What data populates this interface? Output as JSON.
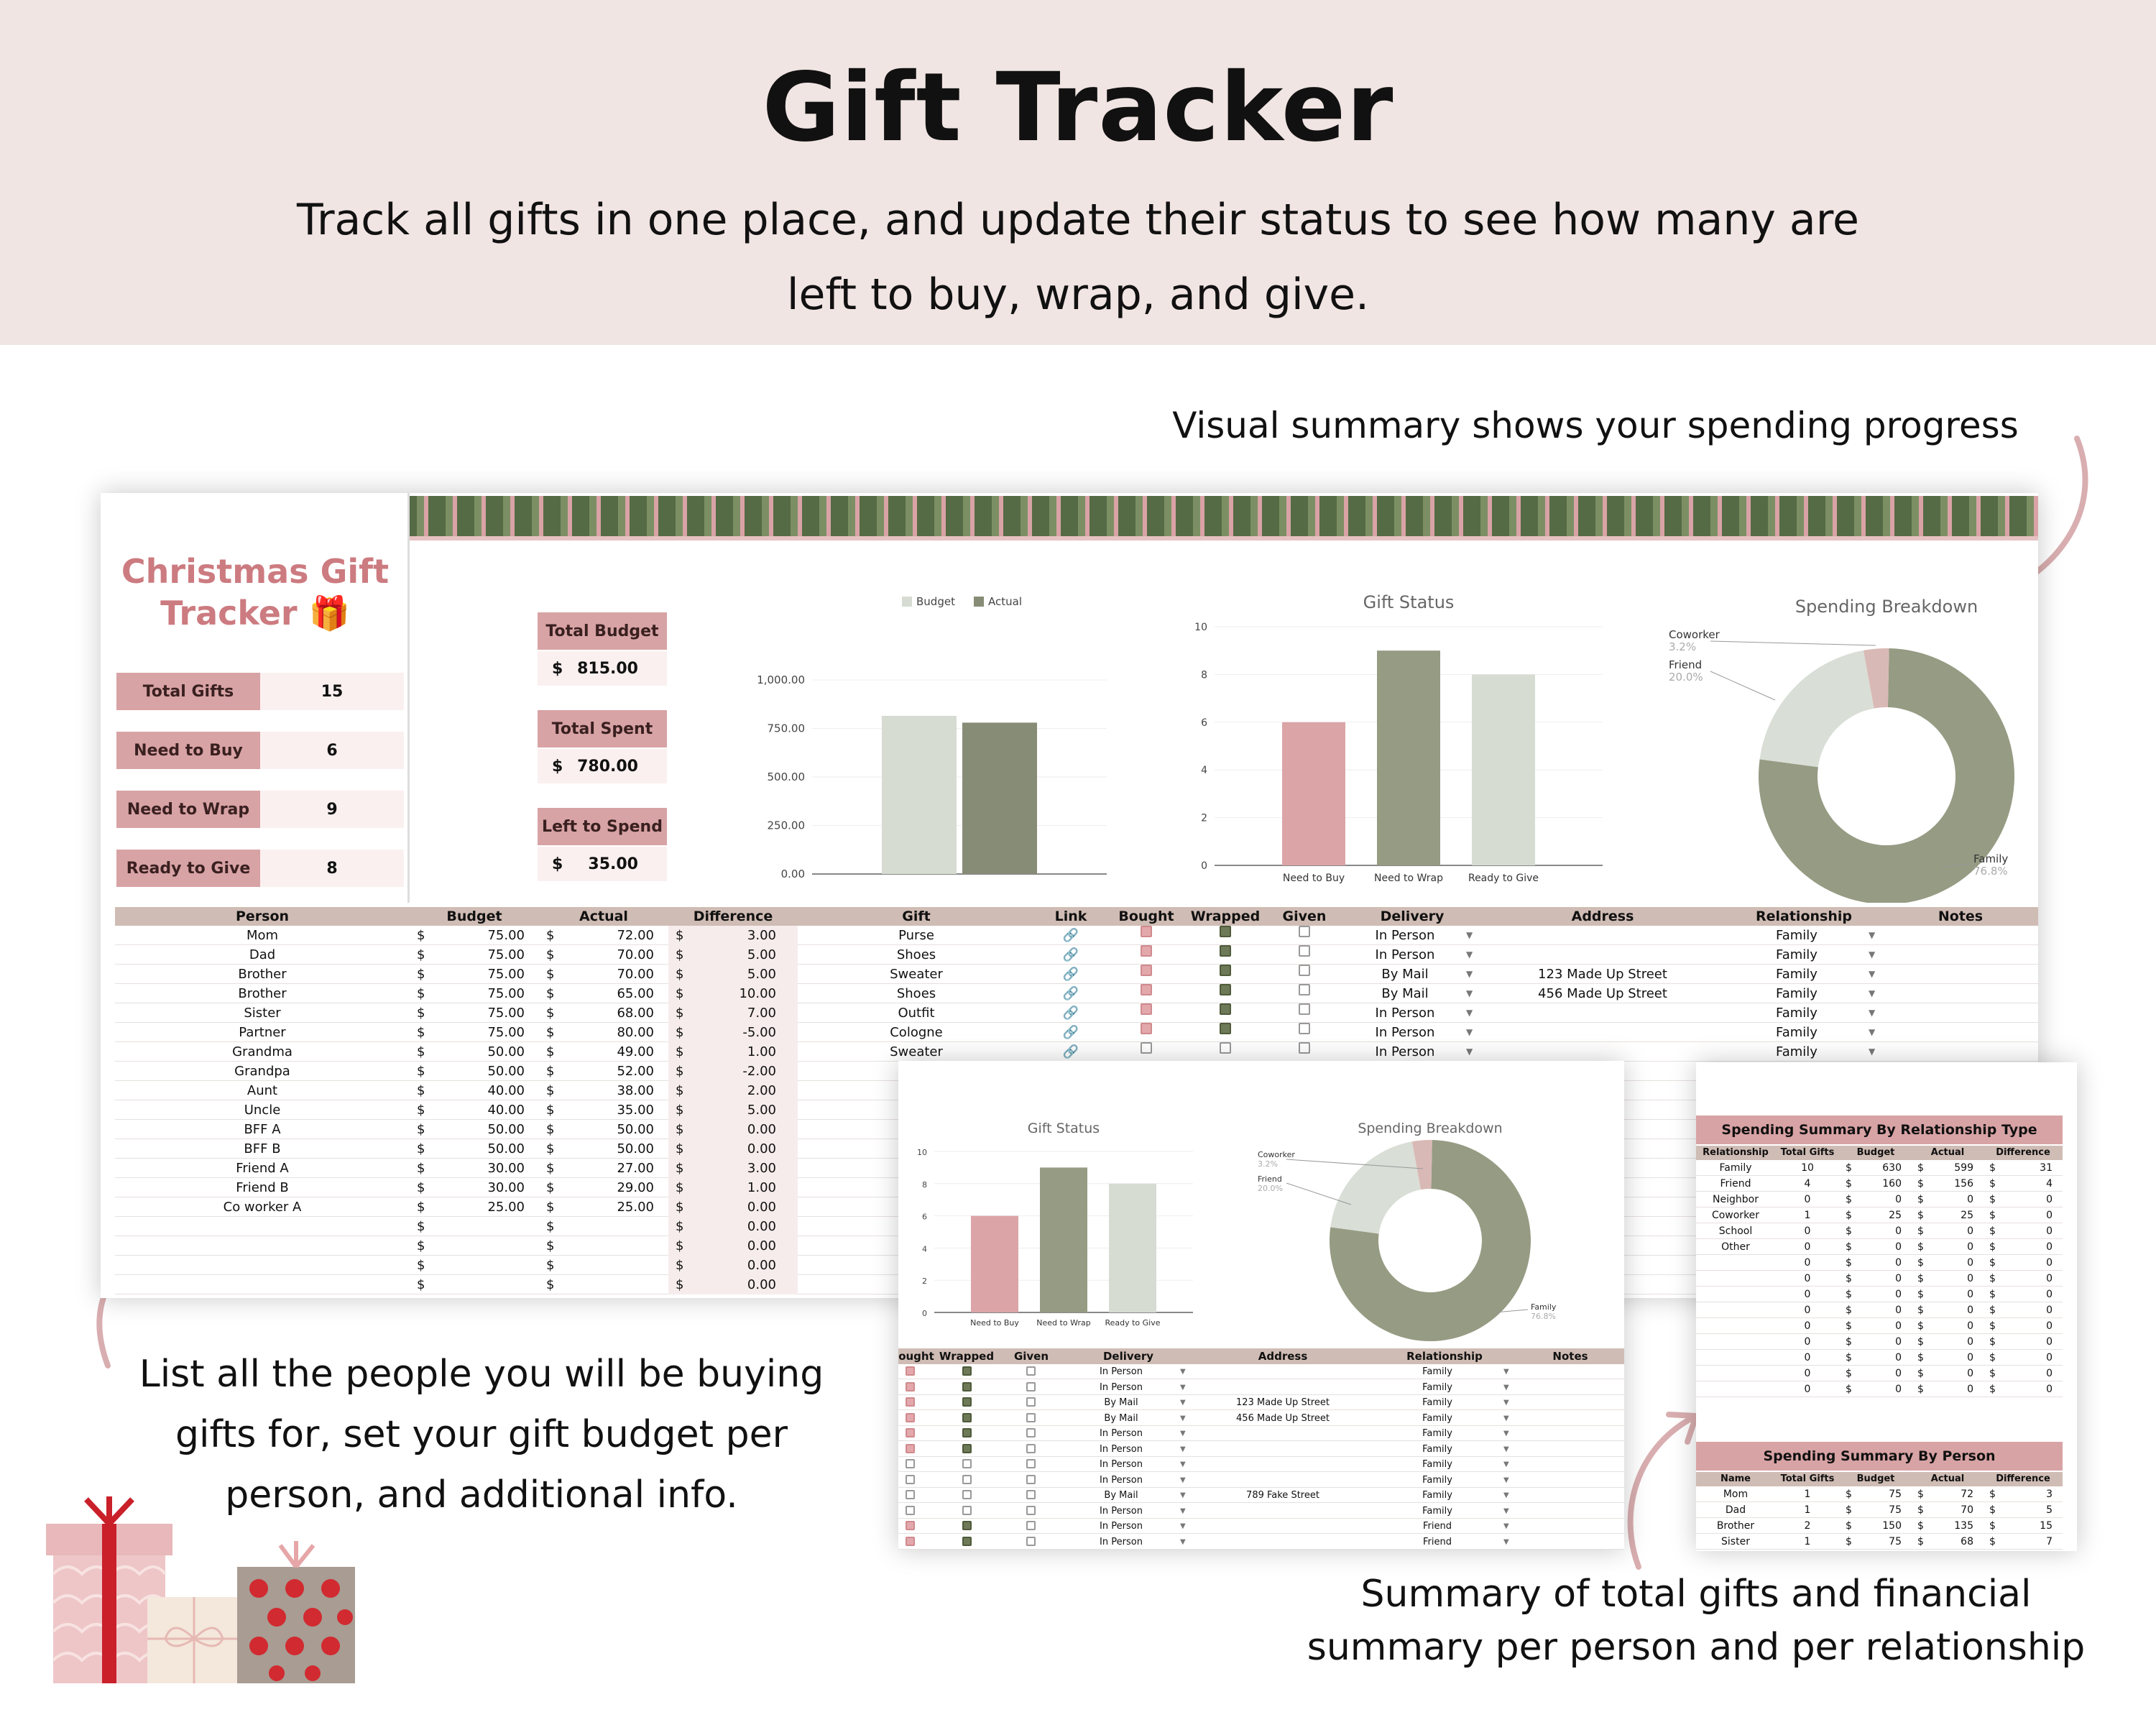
{
  "header": {
    "title": "Gift Tracker",
    "subtitle_line1": "Track all gifts in one place, and update their status to see how many are",
    "subtitle_line2": "left to buy, wrap, and give."
  },
  "captions": {
    "top_right": "Visual summary shows your spending progress",
    "bottom_left_1": "List all the people you will be buying",
    "bottom_left_2": "gifts for, set your gift budget per",
    "bottom_left_3": "person, and additional info.",
    "bottom_right_1": "Summary of total gifts and financial",
    "bottom_right_2": "summary per person and per relationship"
  },
  "sheet": {
    "title_line1": "Christmas Gift",
    "title_line2": "Tracker",
    "title_emoji": "🎁",
    "stats": [
      {
        "label": "Total Gifts",
        "value": "15"
      },
      {
        "label": "Need to Buy",
        "value": "6"
      },
      {
        "label": "Need to Wrap",
        "value": "9"
      },
      {
        "label": "Ready to Give",
        "value": "8"
      }
    ],
    "boxes": [
      {
        "label": "Total Budget",
        "currency": "$",
        "value": "815.00"
      },
      {
        "label": "Total Spent",
        "currency": "$",
        "value": "780.00"
      },
      {
        "label": "Left to Spend",
        "currency": "$",
        "value": "35.00"
      }
    ],
    "columns": [
      "Person",
      "Budget",
      "Actual",
      "Difference",
      "Gift",
      "Link",
      "Bought",
      "Wrapped",
      "Given",
      "Delivery",
      "Address",
      "Relationship",
      "Notes"
    ],
    "rows": [
      {
        "person": "Mom",
        "budget": "75.00",
        "actual": "72.00",
        "diff": "3.00",
        "gift": "Purse",
        "bought": true,
        "wrapped": true,
        "given": false,
        "delivery": "In Person",
        "address": "",
        "rel": "Family"
      },
      {
        "person": "Dad",
        "budget": "75.00",
        "actual": "70.00",
        "diff": "5.00",
        "gift": "Shoes",
        "bought": true,
        "wrapped": true,
        "given": false,
        "delivery": "In Person",
        "address": "",
        "rel": "Family"
      },
      {
        "person": "Brother",
        "budget": "75.00",
        "actual": "70.00",
        "diff": "5.00",
        "gift": "Sweater",
        "bought": true,
        "wrapped": true,
        "given": false,
        "delivery": "By Mail",
        "address": "123 Made Up Street",
        "rel": "Family"
      },
      {
        "person": "Brother",
        "budget": "75.00",
        "actual": "65.00",
        "diff": "10.00",
        "gift": "Shoes",
        "bought": true,
        "wrapped": true,
        "given": false,
        "delivery": "By Mail",
        "address": "456 Made Up Street",
        "rel": "Family"
      },
      {
        "person": "Sister",
        "budget": "75.00",
        "actual": "68.00",
        "diff": "7.00",
        "gift": "Outfit",
        "bought": true,
        "wrapped": true,
        "given": false,
        "delivery": "In Person",
        "address": "",
        "rel": "Family"
      },
      {
        "person": "Partner",
        "budget": "75.00",
        "actual": "80.00",
        "diff": "-5.00",
        "gift": "Cologne",
        "bought": true,
        "wrapped": true,
        "given": false,
        "delivery": "In Person",
        "address": "",
        "rel": "Family"
      },
      {
        "person": "Grandma",
        "budget": "50.00",
        "actual": "49.00",
        "diff": "1.00",
        "gift": "Sweater",
        "bought": false,
        "wrapped": false,
        "given": false,
        "delivery": "In Person",
        "address": "",
        "rel": "Family"
      },
      {
        "person": "Grandpa",
        "budget": "50.00",
        "actual": "52.00",
        "diff": "-2.00"
      },
      {
        "person": "Aunt",
        "budget": "40.00",
        "actual": "38.00",
        "diff": "2.00"
      },
      {
        "person": "Uncle",
        "budget": "40.00",
        "actual": "35.00",
        "diff": "5.00"
      },
      {
        "person": "BFF A",
        "budget": "50.00",
        "actual": "50.00",
        "diff": "0.00"
      },
      {
        "person": "BFF B",
        "budget": "50.00",
        "actual": "50.00",
        "diff": "0.00"
      },
      {
        "person": "Friend A",
        "budget": "30.00",
        "actual": "27.00",
        "diff": "3.00"
      },
      {
        "person": "Friend B",
        "budget": "30.00",
        "actual": "29.00",
        "diff": "1.00"
      },
      {
        "person": "Co worker A",
        "budget": "25.00",
        "actual": "25.00",
        "diff": "0.00"
      },
      {
        "person": "",
        "budget": "",
        "actual": "",
        "diff": "0.00"
      },
      {
        "person": "",
        "budget": "",
        "actual": "",
        "diff": "0.00"
      },
      {
        "person": "",
        "budget": "",
        "actual": "",
        "diff": "0.00"
      },
      {
        "person": "",
        "budget": "",
        "actual": "",
        "diff": "0.00"
      }
    ],
    "currency": "$"
  },
  "overlay": {
    "columns": [
      "ought",
      "Wrapped",
      "Given",
      "Delivery",
      "Address",
      "Relationship",
      "Notes"
    ],
    "rows": [
      {
        "b": true,
        "w": true,
        "delivery": "In Person",
        "address": "",
        "rel": "Family"
      },
      {
        "b": true,
        "w": true,
        "delivery": "In Person",
        "address": "",
        "rel": "Family"
      },
      {
        "b": true,
        "w": true,
        "delivery": "By Mail",
        "address": "123 Made Up Street",
        "rel": "Family"
      },
      {
        "b": true,
        "w": true,
        "delivery": "By Mail",
        "address": "456 Made Up Street",
        "rel": "Family"
      },
      {
        "b": true,
        "w": true,
        "delivery": "In Person",
        "address": "",
        "rel": "Family"
      },
      {
        "b": true,
        "w": true,
        "delivery": "In Person",
        "address": "",
        "rel": "Family"
      },
      {
        "b": false,
        "w": false,
        "delivery": "In Person",
        "address": "",
        "rel": "Family"
      },
      {
        "b": false,
        "w": false,
        "delivery": "In Person",
        "address": "",
        "rel": "Family"
      },
      {
        "b": false,
        "w": false,
        "delivery": "By Mail",
        "address": "789 Fake Street",
        "rel": "Family"
      },
      {
        "b": false,
        "w": false,
        "delivery": "In Person",
        "address": "",
        "rel": "Family"
      },
      {
        "b": true,
        "w": true,
        "delivery": "In Person",
        "address": "",
        "rel": "Friend"
      },
      {
        "b": true,
        "w": true,
        "delivery": "In Person",
        "address": "",
        "rel": "Friend"
      }
    ]
  },
  "rel_summary": {
    "title": "Spending Summary By Relationship Type",
    "columns": [
      "Relationship",
      "Total Gifts",
      "Budget",
      "Actual",
      "Difference"
    ],
    "rows": [
      [
        "Family",
        "10",
        "630",
        "599",
        "31"
      ],
      [
        "Friend",
        "4",
        "160",
        "156",
        "4"
      ],
      [
        "Neighbor",
        "0",
        "0",
        "0",
        "0"
      ],
      [
        "Coworker",
        "1",
        "25",
        "25",
        "0"
      ],
      [
        "School",
        "0",
        "0",
        "0",
        "0"
      ],
      [
        "Other",
        "0",
        "0",
        "0",
        "0"
      ],
      [
        "",
        "0",
        "0",
        "0",
        "0"
      ],
      [
        "",
        "0",
        "0",
        "0",
        "0"
      ],
      [
        "",
        "0",
        "0",
        "0",
        "0"
      ],
      [
        "",
        "0",
        "0",
        "0",
        "0"
      ],
      [
        "",
        "0",
        "0",
        "0",
        "0"
      ],
      [
        "",
        "0",
        "0",
        "0",
        "0"
      ],
      [
        "",
        "0",
        "0",
        "0",
        "0"
      ],
      [
        "",
        "0",
        "0",
        "0",
        "0"
      ],
      [
        "",
        "0",
        "0",
        "0",
        "0"
      ]
    ]
  },
  "person_summary": {
    "title": "Spending Summary By Person",
    "columns": [
      "Name",
      "Total Gifts",
      "Budget",
      "Actual",
      "Difference"
    ],
    "rows": [
      [
        "Mom",
        "1",
        "75",
        "72",
        "3"
      ],
      [
        "Dad",
        "1",
        "75",
        "70",
        "5"
      ],
      [
        "Brother",
        "2",
        "150",
        "135",
        "15"
      ],
      [
        "Sister",
        "1",
        "75",
        "68",
        "7"
      ]
    ]
  },
  "chart_data": [
    {
      "type": "bar",
      "categories": [
        ""
      ],
      "series": [
        {
          "name": "Budget",
          "values": [
            815
          ]
        },
        {
          "name": "Actual",
          "values": [
            780
          ]
        }
      ],
      "yticks": [
        "0.00",
        "250.00",
        "500.00",
        "750.00",
        "1,000.00"
      ],
      "ylim": [
        0,
        1000
      ],
      "legend": "top",
      "colors": [
        "#d6dcd2",
        "#878c77"
      ]
    },
    {
      "type": "bar",
      "title": "Gift Status",
      "categories": [
        "Need to Buy",
        "Need to Wrap",
        "Ready to Give"
      ],
      "values": [
        6,
        9,
        8
      ],
      "yticks": [
        "0",
        "2",
        "4",
        "6",
        "8",
        "10"
      ],
      "ylim": [
        0,
        10
      ],
      "colors": [
        "#dba4a7",
        "#969b83",
        "#d6dcd2"
      ]
    },
    {
      "type": "pie",
      "title": "Spending Breakdown",
      "labels": [
        "Family",
        "Friend",
        "Coworker"
      ],
      "pct_labels": [
        "76.8%",
        "20.0%",
        "3.2%"
      ],
      "values": [
        76.8,
        20.0,
        3.2
      ],
      "colors": [
        "#969b83",
        "#d9ded6",
        "#d9b9b5"
      ]
    }
  ]
}
